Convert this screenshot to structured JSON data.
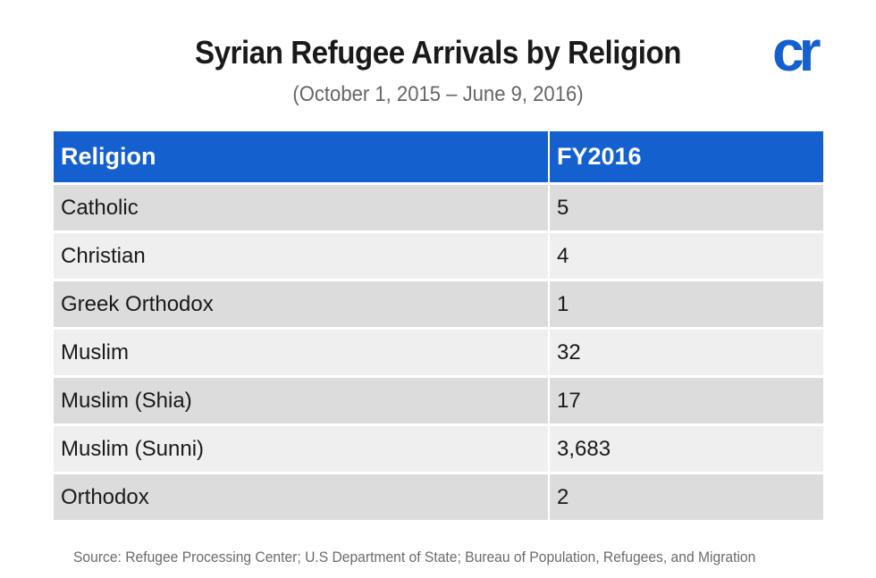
{
  "chart_data": {
    "type": "table",
    "title": "Syrian Refugee Arrivals by Religion",
    "subtitle": "(October 1, 2015 – June 9, 2016)",
    "columns": [
      "Religion",
      "FY2016"
    ],
    "rows": [
      {
        "religion": "Catholic",
        "value": "5"
      },
      {
        "religion": "Christian",
        "value": "4"
      },
      {
        "religion": "Greek Orthodox",
        "value": "1"
      },
      {
        "religion": "Muslim",
        "value": "32"
      },
      {
        "religion": "Muslim (Shia)",
        "value": "17"
      },
      {
        "religion": "Muslim (Sunni)",
        "value": "3,683"
      },
      {
        "religion": "Orthodox",
        "value": "2"
      }
    ],
    "source": "Source: Refugee Processing Center; U.S Department of State; Bureau of Population, Refugees, and Migration"
  },
  "logo": {
    "text": "cr",
    "icon": "cr-logo"
  },
  "colors": {
    "header_bg": "#1560cf",
    "logo": "#1560cf",
    "row_odd": "#dcdcdc",
    "row_even": "#efefef"
  }
}
